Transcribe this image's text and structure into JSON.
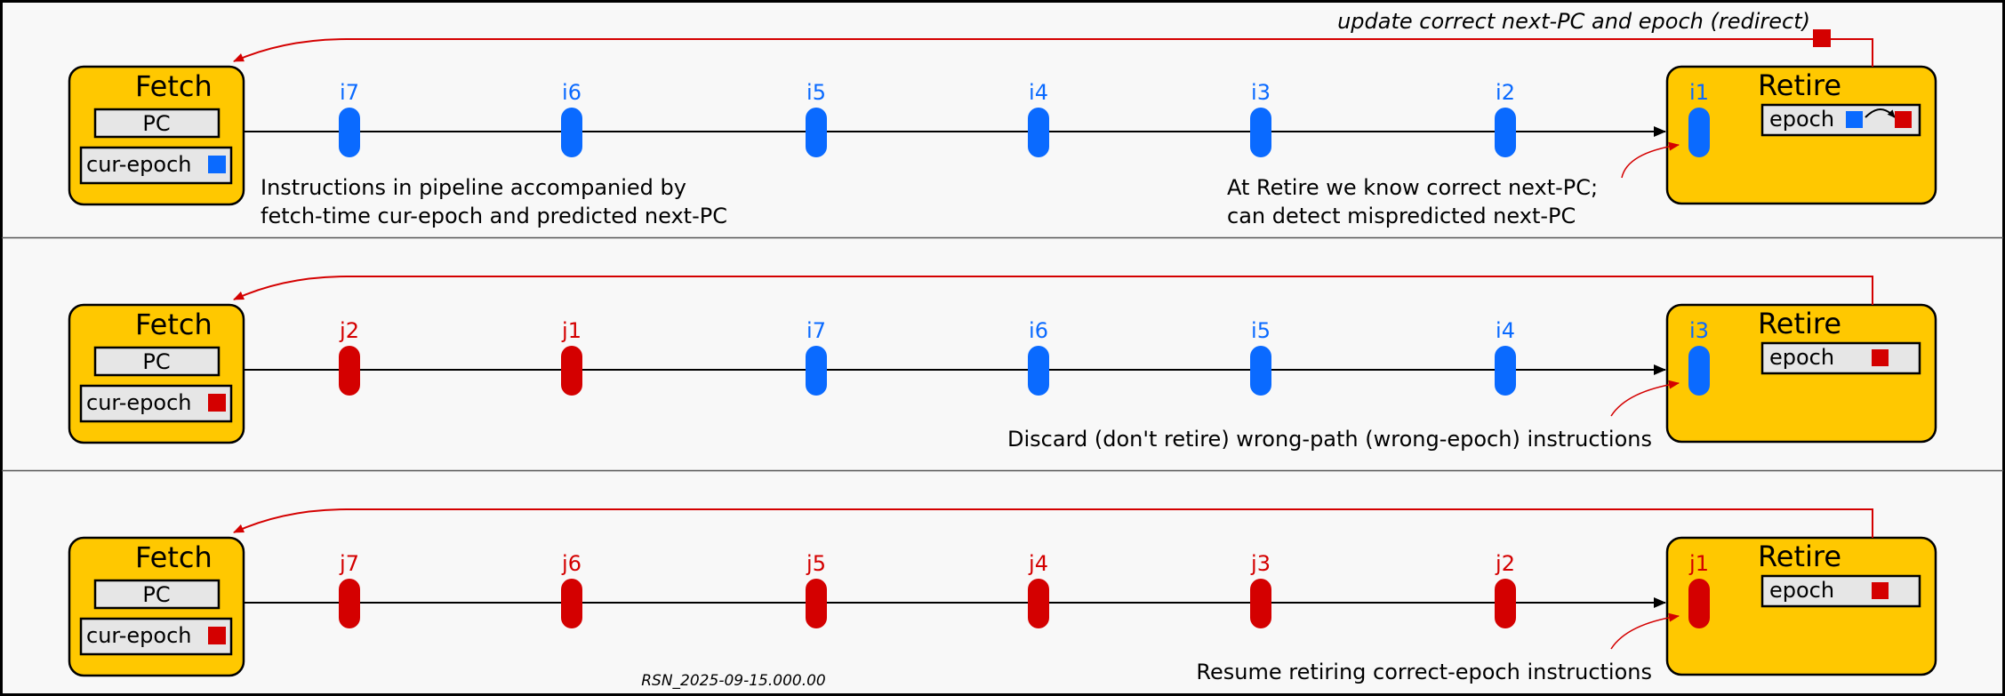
{
  "colors": {
    "blue": "#0a6aff",
    "red": "#d40000",
    "yellow": "#ffc800",
    "box_gray": "#e6e6e6",
    "panel_bg": "#f8f8f8",
    "line": "#000000"
  },
  "top_note": "update correct next-PC and epoch (redirect)",
  "panels": [
    {
      "fetch_label": "Fetch",
      "pc_label": "PC",
      "epoch_label": "cur-epoch",
      "epoch_color": "blue",
      "retire_label": "Retire",
      "retire_epoch_label": "epoch",
      "retire_epoch_update": true,
      "instructions": [
        {
          "label": "i7",
          "color": "blue"
        },
        {
          "label": "i6",
          "color": "blue"
        },
        {
          "label": "i5",
          "color": "blue"
        },
        {
          "label": "i4",
          "color": "blue"
        },
        {
          "label": "i3",
          "color": "blue"
        },
        {
          "label": "i2",
          "color": "blue"
        }
      ],
      "retire_instr": {
        "label": "i1",
        "color": "blue"
      },
      "note_left": [
        "Instructions in pipeline accompanied by",
        "fetch-time cur-epoch and predicted next-PC"
      ],
      "note_right": [
        "At Retire we know correct next-PC;",
        "can detect mispredicted next-PC"
      ]
    },
    {
      "fetch_label": "Fetch",
      "pc_label": "PC",
      "epoch_label": "cur-epoch",
      "epoch_color": "red",
      "retire_label": "Retire",
      "retire_epoch_label": "epoch",
      "retire_epoch_update": false,
      "instructions": [
        {
          "label": "j2",
          "color": "red"
        },
        {
          "label": "j1",
          "color": "red"
        },
        {
          "label": "i7",
          "color": "blue"
        },
        {
          "label": "i6",
          "color": "blue"
        },
        {
          "label": "i5",
          "color": "blue"
        },
        {
          "label": "i4",
          "color": "blue"
        }
      ],
      "retire_instr": {
        "label": "i3",
        "color": "blue"
      },
      "note_left": [],
      "note_right": [
        "Discard (don't retire) wrong-path (wrong-epoch) instructions"
      ]
    },
    {
      "fetch_label": "Fetch",
      "pc_label": "PC",
      "epoch_label": "cur-epoch",
      "epoch_color": "red",
      "retire_label": "Retire",
      "retire_epoch_label": "epoch",
      "retire_epoch_update": false,
      "instructions": [
        {
          "label": "j7",
          "color": "red"
        },
        {
          "label": "j6",
          "color": "red"
        },
        {
          "label": "j5",
          "color": "red"
        },
        {
          "label": "j4",
          "color": "red"
        },
        {
          "label": "j3",
          "color": "red"
        },
        {
          "label": "j2",
          "color": "red"
        }
      ],
      "retire_instr": {
        "label": "j1",
        "color": "red"
      },
      "note_left": [],
      "note_right": [
        "Resume retiring correct-epoch instructions"
      ]
    }
  ],
  "footer_id": "RSN_2025-09-15.000.00"
}
